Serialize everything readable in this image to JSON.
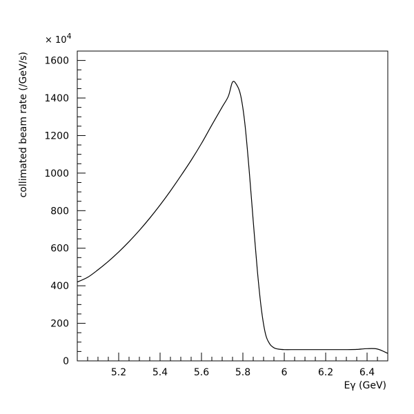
{
  "chart_data": {
    "type": "line",
    "title": "",
    "xlabel": "Eγ (GeV)",
    "ylabel": "collimated beam rate (/GeV/s)",
    "y_multiplier": {
      "base": "× 10",
      "exponent": "4"
    },
    "xlim": [
      5.0,
      6.5
    ],
    "ylim": [
      0,
      1650
    ],
    "x_ticks": [
      5.2,
      5.4,
      5.6,
      5.8,
      6.0,
      6.2,
      6.4
    ],
    "x_tick_labels": [
      "5.2",
      "5.4",
      "5.6",
      "5.8",
      "6",
      "6.2",
      "6.4"
    ],
    "y_ticks": [
      0,
      200,
      400,
      600,
      800,
      1000,
      1200,
      1400,
      1600
    ],
    "y_tick_labels": [
      "0",
      "200",
      "400",
      "600",
      "800",
      "1000",
      "1200",
      "1400",
      "1600"
    ],
    "grid": false,
    "series": [
      {
        "x": [
          5.0,
          5.05,
          5.1,
          5.15,
          5.2,
          5.25,
          5.3,
          5.35,
          5.4,
          5.45,
          5.5,
          5.55,
          5.6,
          5.65,
          5.7,
          5.73,
          5.75,
          5.77,
          5.79,
          5.81,
          5.83,
          5.85,
          5.87,
          5.89,
          5.91,
          5.93,
          5.95,
          5.97,
          6.0,
          6.05,
          6.1,
          6.2,
          6.3,
          6.35,
          6.4,
          6.45,
          6.5
        ],
        "y": [
          420,
          445,
          485,
          530,
          580,
          635,
          695,
          760,
          830,
          905,
          985,
          1068,
          1158,
          1256,
          1352,
          1410,
          1485,
          1470,
          1410,
          1260,
          1020,
          745,
          480,
          270,
          140,
          90,
          70,
          63,
          60,
          60,
          60,
          60,
          60,
          61,
          65,
          63,
          40
        ]
      }
    ]
  }
}
